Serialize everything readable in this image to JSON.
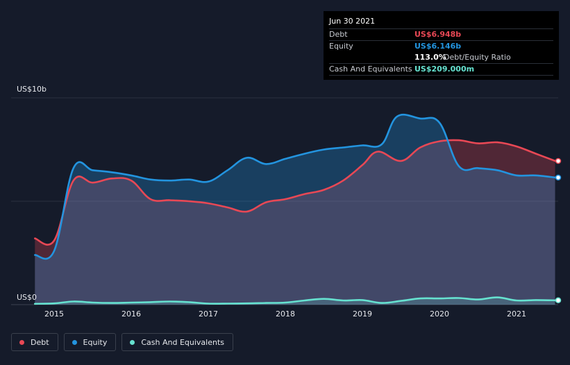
{
  "chart_data": {
    "type": "area",
    "ylim": [
      0,
      10
    ],
    "y_unit": "US$ billions",
    "y_labels": {
      "top": "US$10b",
      "bottom": "US$0"
    },
    "x_range": [
      2014.6,
      2021.5
    ],
    "x_ticks": [
      "2015",
      "2016",
      "2017",
      "2018",
      "2019",
      "2020",
      "2021"
    ],
    "series": [
      {
        "name": "Debt",
        "color": "#e84855",
        "points": [
          [
            2014.75,
            3.2
          ],
          [
            2015.0,
            3.1
          ],
          [
            2015.25,
            6.0
          ],
          [
            2015.5,
            5.9
          ],
          [
            2015.75,
            6.1
          ],
          [
            2016.0,
            6.0
          ],
          [
            2016.25,
            5.1
          ],
          [
            2016.5,
            5.05
          ],
          [
            2016.75,
            5.0
          ],
          [
            2017.0,
            4.9
          ],
          [
            2017.25,
            4.7
          ],
          [
            2017.5,
            4.5
          ],
          [
            2017.75,
            4.95
          ],
          [
            2018.0,
            5.1
          ],
          [
            2018.25,
            5.35
          ],
          [
            2018.5,
            5.55
          ],
          [
            2018.75,
            6.0
          ],
          [
            2019.0,
            6.75
          ],
          [
            2019.2,
            7.4
          ],
          [
            2019.5,
            6.95
          ],
          [
            2019.75,
            7.6
          ],
          [
            2020.0,
            7.9
          ],
          [
            2020.25,
            7.95
          ],
          [
            2020.5,
            7.8
          ],
          [
            2020.75,
            7.85
          ],
          [
            2021.0,
            7.65
          ],
          [
            2021.25,
            7.3
          ],
          [
            2021.5,
            6.948
          ]
        ]
      },
      {
        "name": "Equity",
        "color": "#2394df",
        "points": [
          [
            2014.75,
            2.4
          ],
          [
            2015.0,
            2.6
          ],
          [
            2015.25,
            6.6
          ],
          [
            2015.5,
            6.5
          ],
          [
            2015.75,
            6.4
          ],
          [
            2016.0,
            6.25
          ],
          [
            2016.25,
            6.05
          ],
          [
            2016.5,
            6.0
          ],
          [
            2016.75,
            6.05
          ],
          [
            2017.0,
            5.95
          ],
          [
            2017.25,
            6.5
          ],
          [
            2017.5,
            7.1
          ],
          [
            2017.75,
            6.8
          ],
          [
            2018.0,
            7.05
          ],
          [
            2018.25,
            7.3
          ],
          [
            2018.5,
            7.5
          ],
          [
            2018.75,
            7.6
          ],
          [
            2019.0,
            7.7
          ],
          [
            2019.25,
            7.75
          ],
          [
            2019.45,
            9.1
          ],
          [
            2019.75,
            9.0
          ],
          [
            2020.0,
            8.8
          ],
          [
            2020.25,
            6.7
          ],
          [
            2020.5,
            6.6
          ],
          [
            2020.75,
            6.5
          ],
          [
            2021.0,
            6.25
          ],
          [
            2021.25,
            6.25
          ],
          [
            2021.5,
            6.146
          ]
        ]
      },
      {
        "name": "Cash And Equivalents",
        "color": "#66e2d0",
        "points": [
          [
            2014.75,
            0.04
          ],
          [
            2015.0,
            0.06
          ],
          [
            2015.25,
            0.15
          ],
          [
            2015.5,
            0.1
          ],
          [
            2015.75,
            0.08
          ],
          [
            2016.0,
            0.1
          ],
          [
            2016.25,
            0.12
          ],
          [
            2016.5,
            0.15
          ],
          [
            2016.75,
            0.12
          ],
          [
            2017.0,
            0.05
          ],
          [
            2017.25,
            0.05
          ],
          [
            2017.5,
            0.06
          ],
          [
            2017.75,
            0.08
          ],
          [
            2018.0,
            0.1
          ],
          [
            2018.25,
            0.2
          ],
          [
            2018.5,
            0.28
          ],
          [
            2018.75,
            0.2
          ],
          [
            2019.0,
            0.22
          ],
          [
            2019.25,
            0.08
          ],
          [
            2019.5,
            0.18
          ],
          [
            2019.75,
            0.3
          ],
          [
            2020.0,
            0.3
          ],
          [
            2020.25,
            0.32
          ],
          [
            2020.5,
            0.25
          ],
          [
            2020.75,
            0.35
          ],
          [
            2021.0,
            0.2
          ],
          [
            2021.25,
            0.22
          ],
          [
            2021.5,
            0.209
          ]
        ]
      }
    ]
  },
  "tooltip": {
    "date": "Jun 30 2021",
    "debt_label": "Debt",
    "debt_value": "US$6.948b",
    "equity_label": "Equity",
    "equity_value": "US$6.146b",
    "ratio_value": "113.0%",
    "ratio_label": "Debt/Equity Ratio",
    "cash_label": "Cash And Equivalents",
    "cash_value": "US$209.000m"
  },
  "legend": [
    {
      "label": "Debt",
      "color": "#e84855"
    },
    {
      "label": "Equity",
      "color": "#2394df"
    },
    {
      "label": "Cash And Equivalents",
      "color": "#66e2d0"
    }
  ],
  "colors": {
    "background": "#151b2a",
    "debt": "#e84855",
    "equity": "#2394df",
    "cash": "#66e2d0"
  }
}
